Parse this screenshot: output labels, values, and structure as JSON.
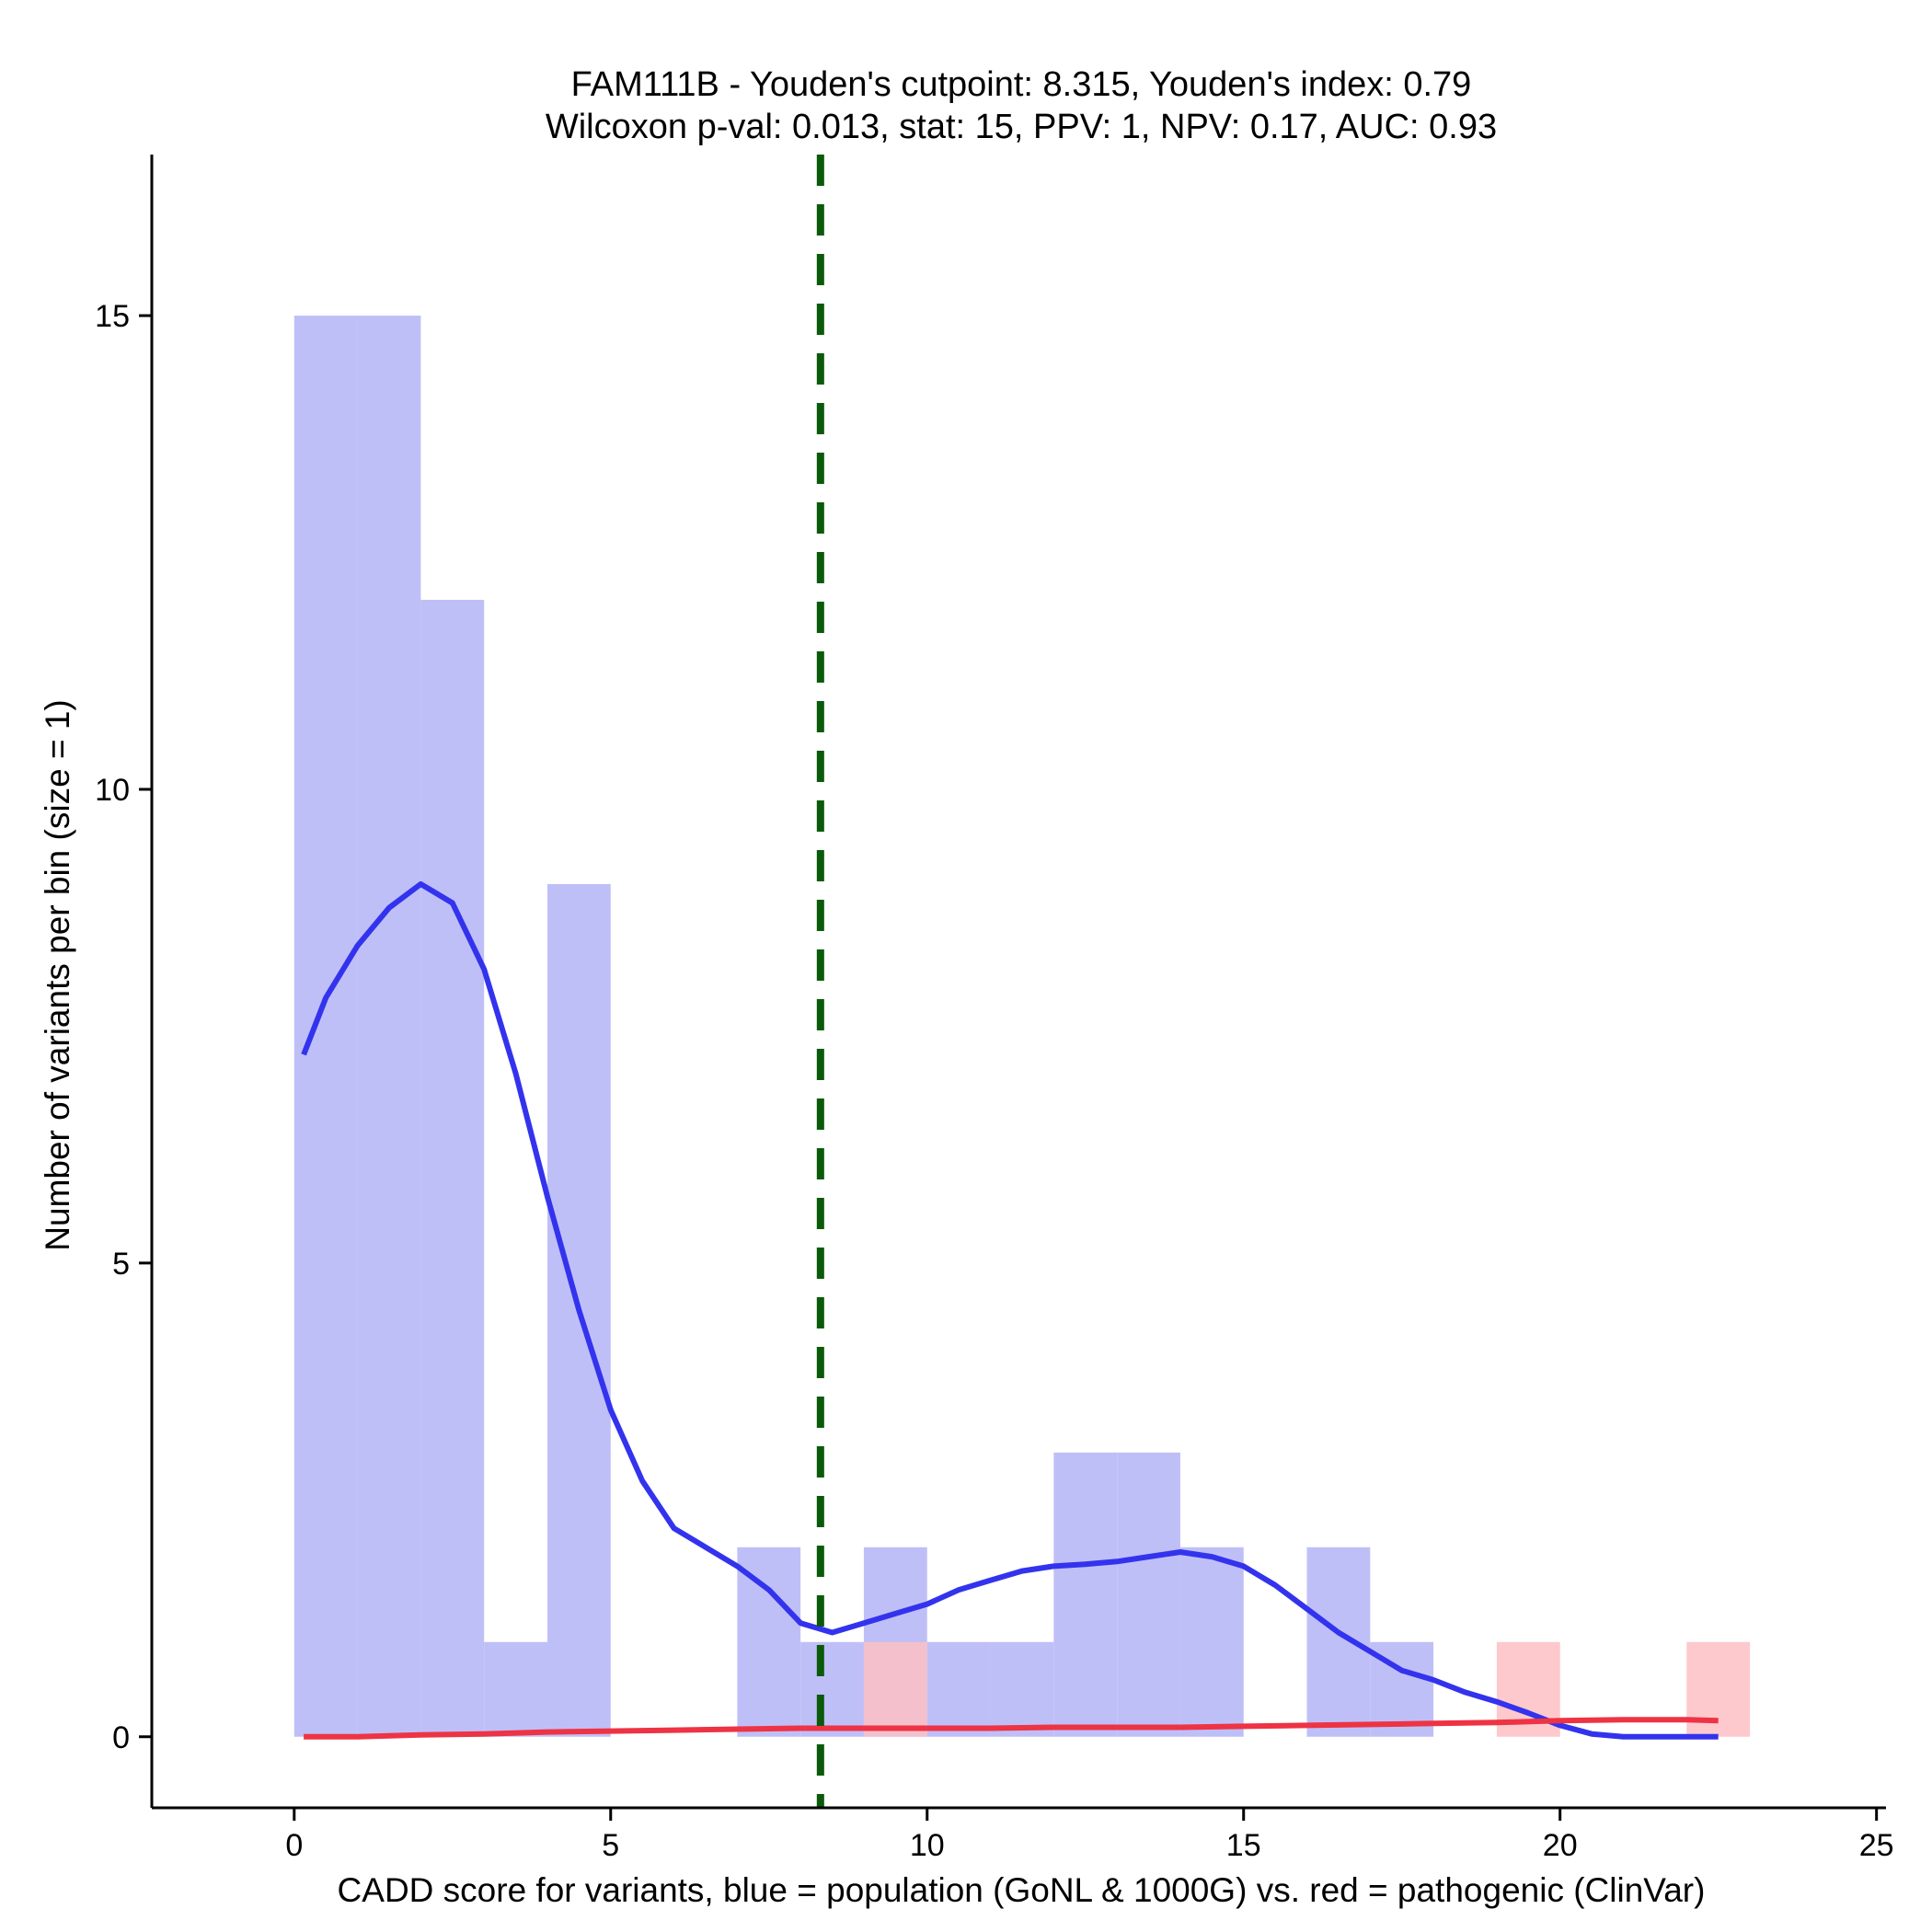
{
  "chart_data": {
    "type": "bar",
    "title": "FAM111B - Youden's cutpoint: 8.315, Youden's index: 0.79",
    "subtitle": "Wilcoxon p-val: 0.013, stat: 15, PPV: 1, NPV: 0.17, AUC: 0.93",
    "xlabel": "CADD score for variants, blue = population (GoNL & 1000G) vs. red = pathogenic (ClinVar)",
    "ylabel": "Number of variants per bin (size = 1)",
    "xlim": [
      -2.25,
      25.15
    ],
    "ylim": [
      -0.75,
      16.7
    ],
    "xticks": [
      0,
      5,
      10,
      15,
      20,
      25
    ],
    "yticks": [
      0,
      5,
      10,
      15
    ],
    "bin_size": 1,
    "cutpoint": 8.315,
    "colors": {
      "population_bar": "#bfbff8",
      "pathogenic_bar": "#fdbfc3",
      "population_density": "#3333ee",
      "pathogenic_density": "#ee3344",
      "cutpoint_line": "#0a5a0a"
    },
    "series": [
      {
        "kind": "histogram",
        "color_key": "population_bar",
        "bins": [
          {
            "x0": 0,
            "x1": 1,
            "count": 15
          },
          {
            "x0": 1,
            "x1": 2,
            "count": 15
          },
          {
            "x0": 2,
            "x1": 3,
            "count": 12
          },
          {
            "x0": 3,
            "x1": 4,
            "count": 1
          },
          {
            "x0": 4,
            "x1": 5,
            "count": 9
          },
          {
            "x0": 7,
            "x1": 8,
            "count": 2
          },
          {
            "x0": 8,
            "x1": 9,
            "count": 1
          },
          {
            "x0": 9,
            "x1": 10,
            "count": 2
          },
          {
            "x0": 10,
            "x1": 11,
            "count": 1
          },
          {
            "x0": 11,
            "x1": 12,
            "count": 1
          },
          {
            "x0": 12,
            "x1": 13,
            "count": 3
          },
          {
            "x0": 13,
            "x1": 14,
            "count": 3
          },
          {
            "x0": 14,
            "x1": 15,
            "count": 2
          },
          {
            "x0": 16,
            "x1": 17,
            "count": 2
          },
          {
            "x0": 17,
            "x1": 18,
            "count": 1
          }
        ]
      },
      {
        "kind": "histogram",
        "color_key": "pathogenic_bar",
        "bins": [
          {
            "x0": 9,
            "x1": 10,
            "count": 1
          },
          {
            "x0": 19,
            "x1": 20,
            "count": 1
          },
          {
            "x0": 22,
            "x1": 23,
            "count": 1
          }
        ]
      },
      {
        "kind": "density",
        "color_key": "population_density",
        "x": [
          0.15,
          0.5,
          1.0,
          1.5,
          2.0,
          2.5,
          3.0,
          3.5,
          4.0,
          4.5,
          5.0,
          5.5,
          6.0,
          6.5,
          7.0,
          7.5,
          8.0,
          8.5,
          9.0,
          9.5,
          10.0,
          10.5,
          11.0,
          11.5,
          12.0,
          12.5,
          13.0,
          13.5,
          14.0,
          14.5,
          15.0,
          15.5,
          16.0,
          16.5,
          17.0,
          17.5,
          18.0,
          18.5,
          19.0,
          19.5,
          20.0,
          20.5,
          21.0,
          21.5,
          22.0,
          22.5
        ],
        "y": [
          7.2,
          7.8,
          8.35,
          8.75,
          9.0,
          8.8,
          8.1,
          7.0,
          5.7,
          4.5,
          3.45,
          2.7,
          2.2,
          2.0,
          1.8,
          1.55,
          1.2,
          1.1,
          1.2,
          1.3,
          1.4,
          1.55,
          1.65,
          1.75,
          1.8,
          1.82,
          1.85,
          1.9,
          1.95,
          1.9,
          1.8,
          1.6,
          1.35,
          1.1,
          0.9,
          0.7,
          0.6,
          0.47,
          0.37,
          0.25,
          0.12,
          0.03,
          0.0,
          0.0,
          0.0,
          0.0
        ]
      },
      {
        "kind": "density",
        "color_key": "pathogenic_density",
        "x": [
          0.15,
          1.0,
          2.0,
          3.0,
          4.0,
          5.0,
          6.0,
          7.0,
          8.0,
          9.0,
          10.0,
          11.0,
          12.0,
          13.0,
          14.0,
          15.0,
          16.0,
          17.0,
          18.0,
          19.0,
          20.0,
          21.0,
          22.0,
          22.5
        ],
        "y": [
          0.0,
          0.0,
          0.02,
          0.03,
          0.05,
          0.06,
          0.07,
          0.08,
          0.09,
          0.09,
          0.09,
          0.09,
          0.1,
          0.1,
          0.1,
          0.11,
          0.12,
          0.13,
          0.14,
          0.15,
          0.17,
          0.18,
          0.18,
          0.17
        ]
      }
    ]
  }
}
